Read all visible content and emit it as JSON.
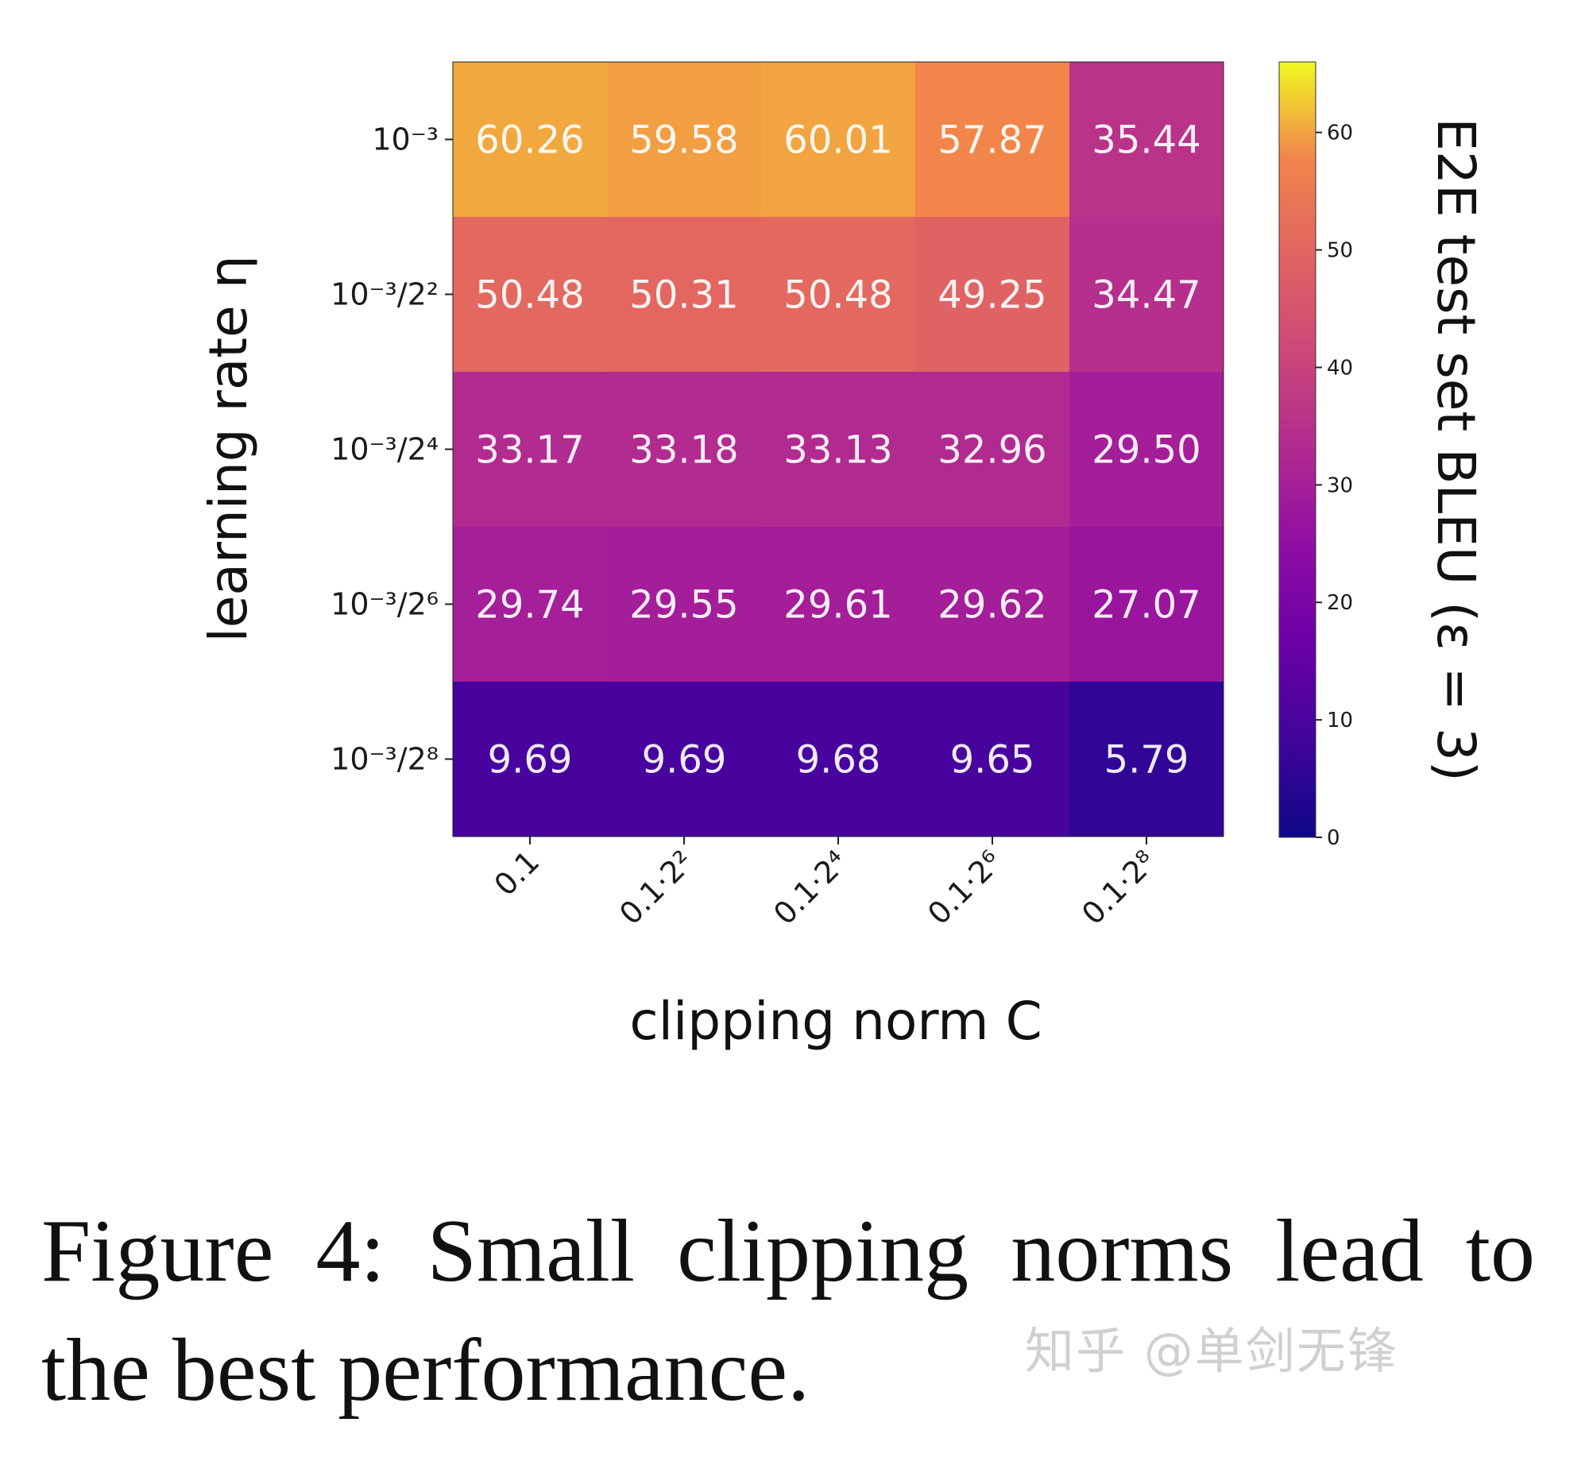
{
  "chart_data": {
    "type": "heatmap",
    "xlabel": "clipping norm C",
    "ylabel": "learning rate η",
    "x_tick_labels": [
      "0.1",
      "0.1·2²",
      "0.1·2⁴",
      "0.1·2⁶",
      "0.1·2⁸"
    ],
    "y_tick_labels": [
      "10⁻³",
      "10⁻³/2²",
      "10⁻³/2⁴",
      "10⁻³/2⁶",
      "10⁻³/2⁸"
    ],
    "values": [
      [
        60.26,
        59.58,
        60.01,
        57.87,
        35.44
      ],
      [
        50.48,
        50.31,
        50.48,
        49.25,
        34.47
      ],
      [
        33.17,
        33.18,
        33.13,
        32.96,
        29.5
      ],
      [
        29.74,
        29.55,
        29.61,
        29.62,
        27.07
      ],
      [
        9.69,
        9.69,
        9.68,
        9.65,
        5.79
      ]
    ],
    "colorbar": {
      "label": "E2E test set BLEU (ε = 3)",
      "range": [
        0,
        66
      ],
      "ticks": [
        0,
        10,
        20,
        30,
        40,
        50,
        60
      ],
      "colormap": "plasma"
    },
    "grid": false
  },
  "caption": {
    "text": "Figure 4:  Small clipping norms lead to the best performance."
  },
  "watermark": {
    "text": "知乎 @单剑无锋"
  }
}
